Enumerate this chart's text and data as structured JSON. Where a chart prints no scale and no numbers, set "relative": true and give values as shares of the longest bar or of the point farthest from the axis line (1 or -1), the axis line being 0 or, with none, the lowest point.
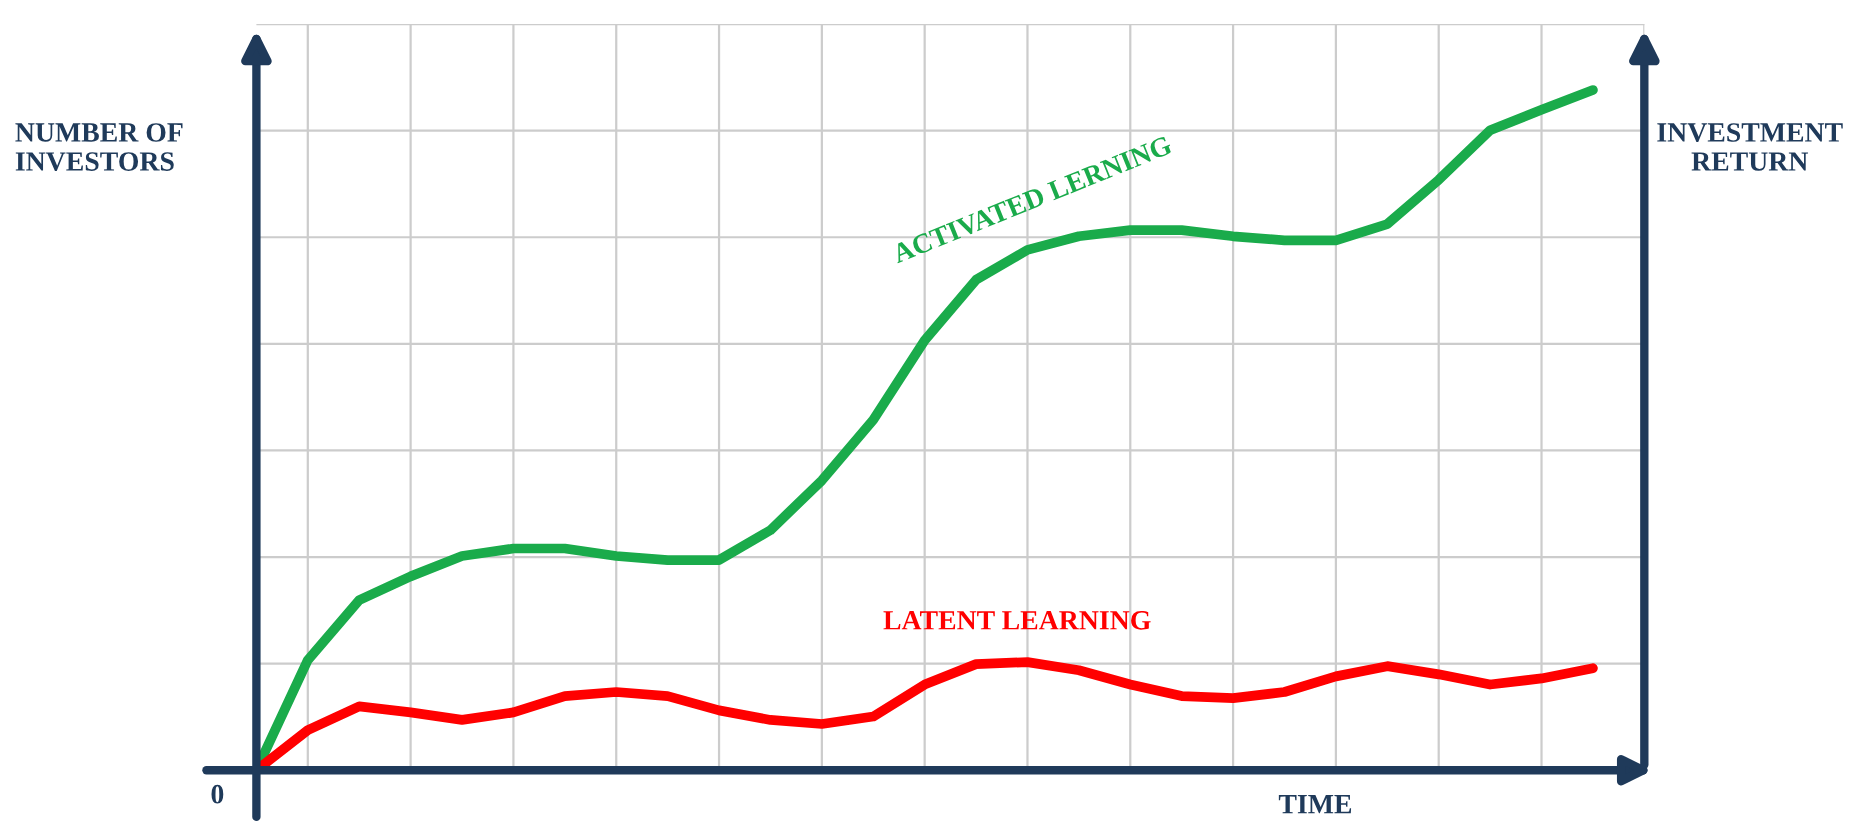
{
  "chart_data": {
    "type": "line",
    "relative": true,
    "xlabel": "TIME",
    "ylabel": "NUMBER OF\nINVESTORS",
    "y2label": "INVESTMENT\nRETURN",
    "annotations": [
      "0"
    ],
    "grid": true,
    "legend": false,
    "marker": "none",
    "line_style": "solid",
    "categories": [
      null,
      null,
      null,
      null,
      null,
      null,
      null,
      null,
      null,
      null,
      null,
      null,
      null,
      null,
      null,
      null,
      null,
      null,
      null,
      null,
      null,
      null,
      null,
      null,
      null,
      null,
      null
    ],
    "series": [
      {
        "name": "ACTIVATED LERNING",
        "color": "#1aab4b",
        "values": [
          0,
          0.162,
          0.25,
          0.285,
          0.315,
          0.326,
          0.326,
          0.315,
          0.309,
          0.309,
          0.353,
          0.426,
          0.515,
          0.632,
          0.721,
          0.765,
          0.785,
          0.794,
          0.794,
          0.785,
          0.779,
          0.779,
          0.803,
          0.868,
          0.941,
          0.971,
          1
        ]
      },
      {
        "name": "LATENT LEARNING",
        "color": "#ff0000",
        "values": [
          0,
          0.059,
          0.094,
          0.085,
          0.074,
          0.085,
          0.109,
          0.115,
          0.109,
          0.088,
          0.074,
          0.068,
          0.079,
          0.126,
          0.156,
          0.159,
          0.147,
          0.126,
          0.109,
          0.106,
          0.115,
          0.138,
          0.153,
          0.141,
          0.126,
          0.135,
          0.15
        ]
      }
    ]
  }
}
